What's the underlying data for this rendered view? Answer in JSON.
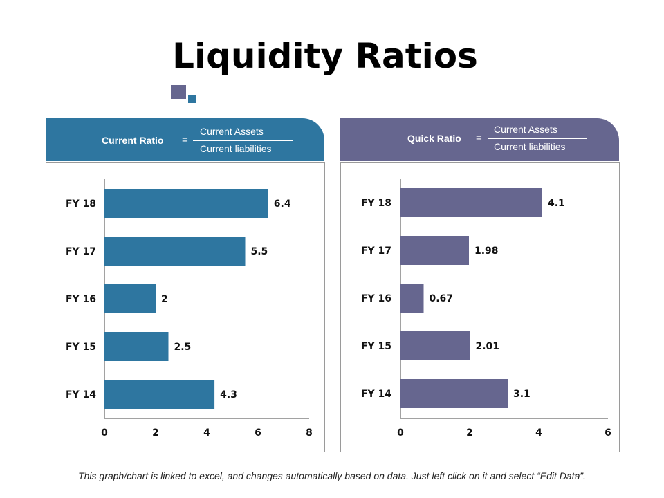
{
  "title": "Liquidity Ratios",
  "colors": {
    "left_accent": "#2e76a0",
    "right_accent": "#66668f"
  },
  "panels": [
    {
      "ratio_label": "Current Ratio",
      "equals": "=",
      "numerator": "Current Assets",
      "denominator": "Current liabilities"
    },
    {
      "ratio_label": "Quick Ratio",
      "equals": "=",
      "numerator": "Current Assets",
      "denominator": "Current liabilities"
    }
  ],
  "chart_data": [
    {
      "type": "bar",
      "orientation": "horizontal",
      "title": "Current Ratio",
      "categories": [
        "FY 18",
        "FY 17",
        "FY 16",
        "FY 15",
        "FY 14"
      ],
      "values": [
        6.4,
        5.5,
        2,
        2.5,
        4.3
      ],
      "value_labels": [
        "6.4",
        "5.5",
        "2",
        "2.5",
        "4.3"
      ],
      "xlim": [
        0,
        8
      ],
      "xticks": [
        0,
        2,
        4,
        6,
        8
      ],
      "xlabel": "",
      "ylabel": "",
      "grid": false,
      "color": "#2e76a0"
    },
    {
      "type": "bar",
      "orientation": "horizontal",
      "title": "Quick Ratio",
      "categories": [
        "FY 18",
        "FY 17",
        "FY 16",
        "FY 15",
        "FY 14"
      ],
      "values": [
        4.1,
        1.98,
        0.67,
        2.01,
        3.1
      ],
      "value_labels": [
        "4.1",
        "1.98",
        "0.67",
        "2.01",
        "3.1"
      ],
      "xlim": [
        0,
        6
      ],
      "xticks": [
        0,
        2,
        4,
        6
      ],
      "xlabel": "",
      "ylabel": "",
      "grid": false,
      "color": "#66668f"
    }
  ],
  "footnote": "This graph/chart is linked to excel, and changes automatically based on data. Just left click on it and select “Edit Data”."
}
